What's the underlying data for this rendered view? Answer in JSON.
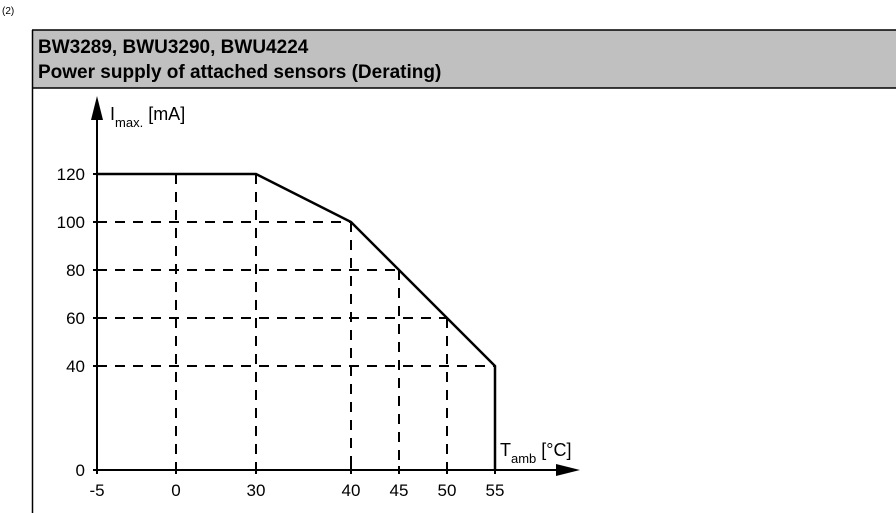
{
  "label": "(2)",
  "chart_data": {
    "type": "line",
    "title": "BW3289, BWU3290, BWU4224",
    "subtitle": "Power supply of attached sensors (Derating)",
    "y_label": {
      "symbol": "I",
      "subscript": "max.",
      "unit": "[mA]"
    },
    "x_label": {
      "symbol": "T",
      "subscript": "amb",
      "unit": "[°C]"
    },
    "x": [
      -5,
      30,
      40,
      45,
      50,
      55,
      55
    ],
    "values": [
      120,
      120,
      100,
      80,
      60,
      40,
      0
    ],
    "color": "#000000",
    "xlim": [
      -5,
      55
    ],
    "ylim": [
      0,
      120
    ],
    "xticks": [
      -5,
      0,
      30,
      40,
      45,
      50,
      55
    ],
    "yticks": [
      0,
      40,
      60,
      80,
      100,
      120
    ]
  }
}
